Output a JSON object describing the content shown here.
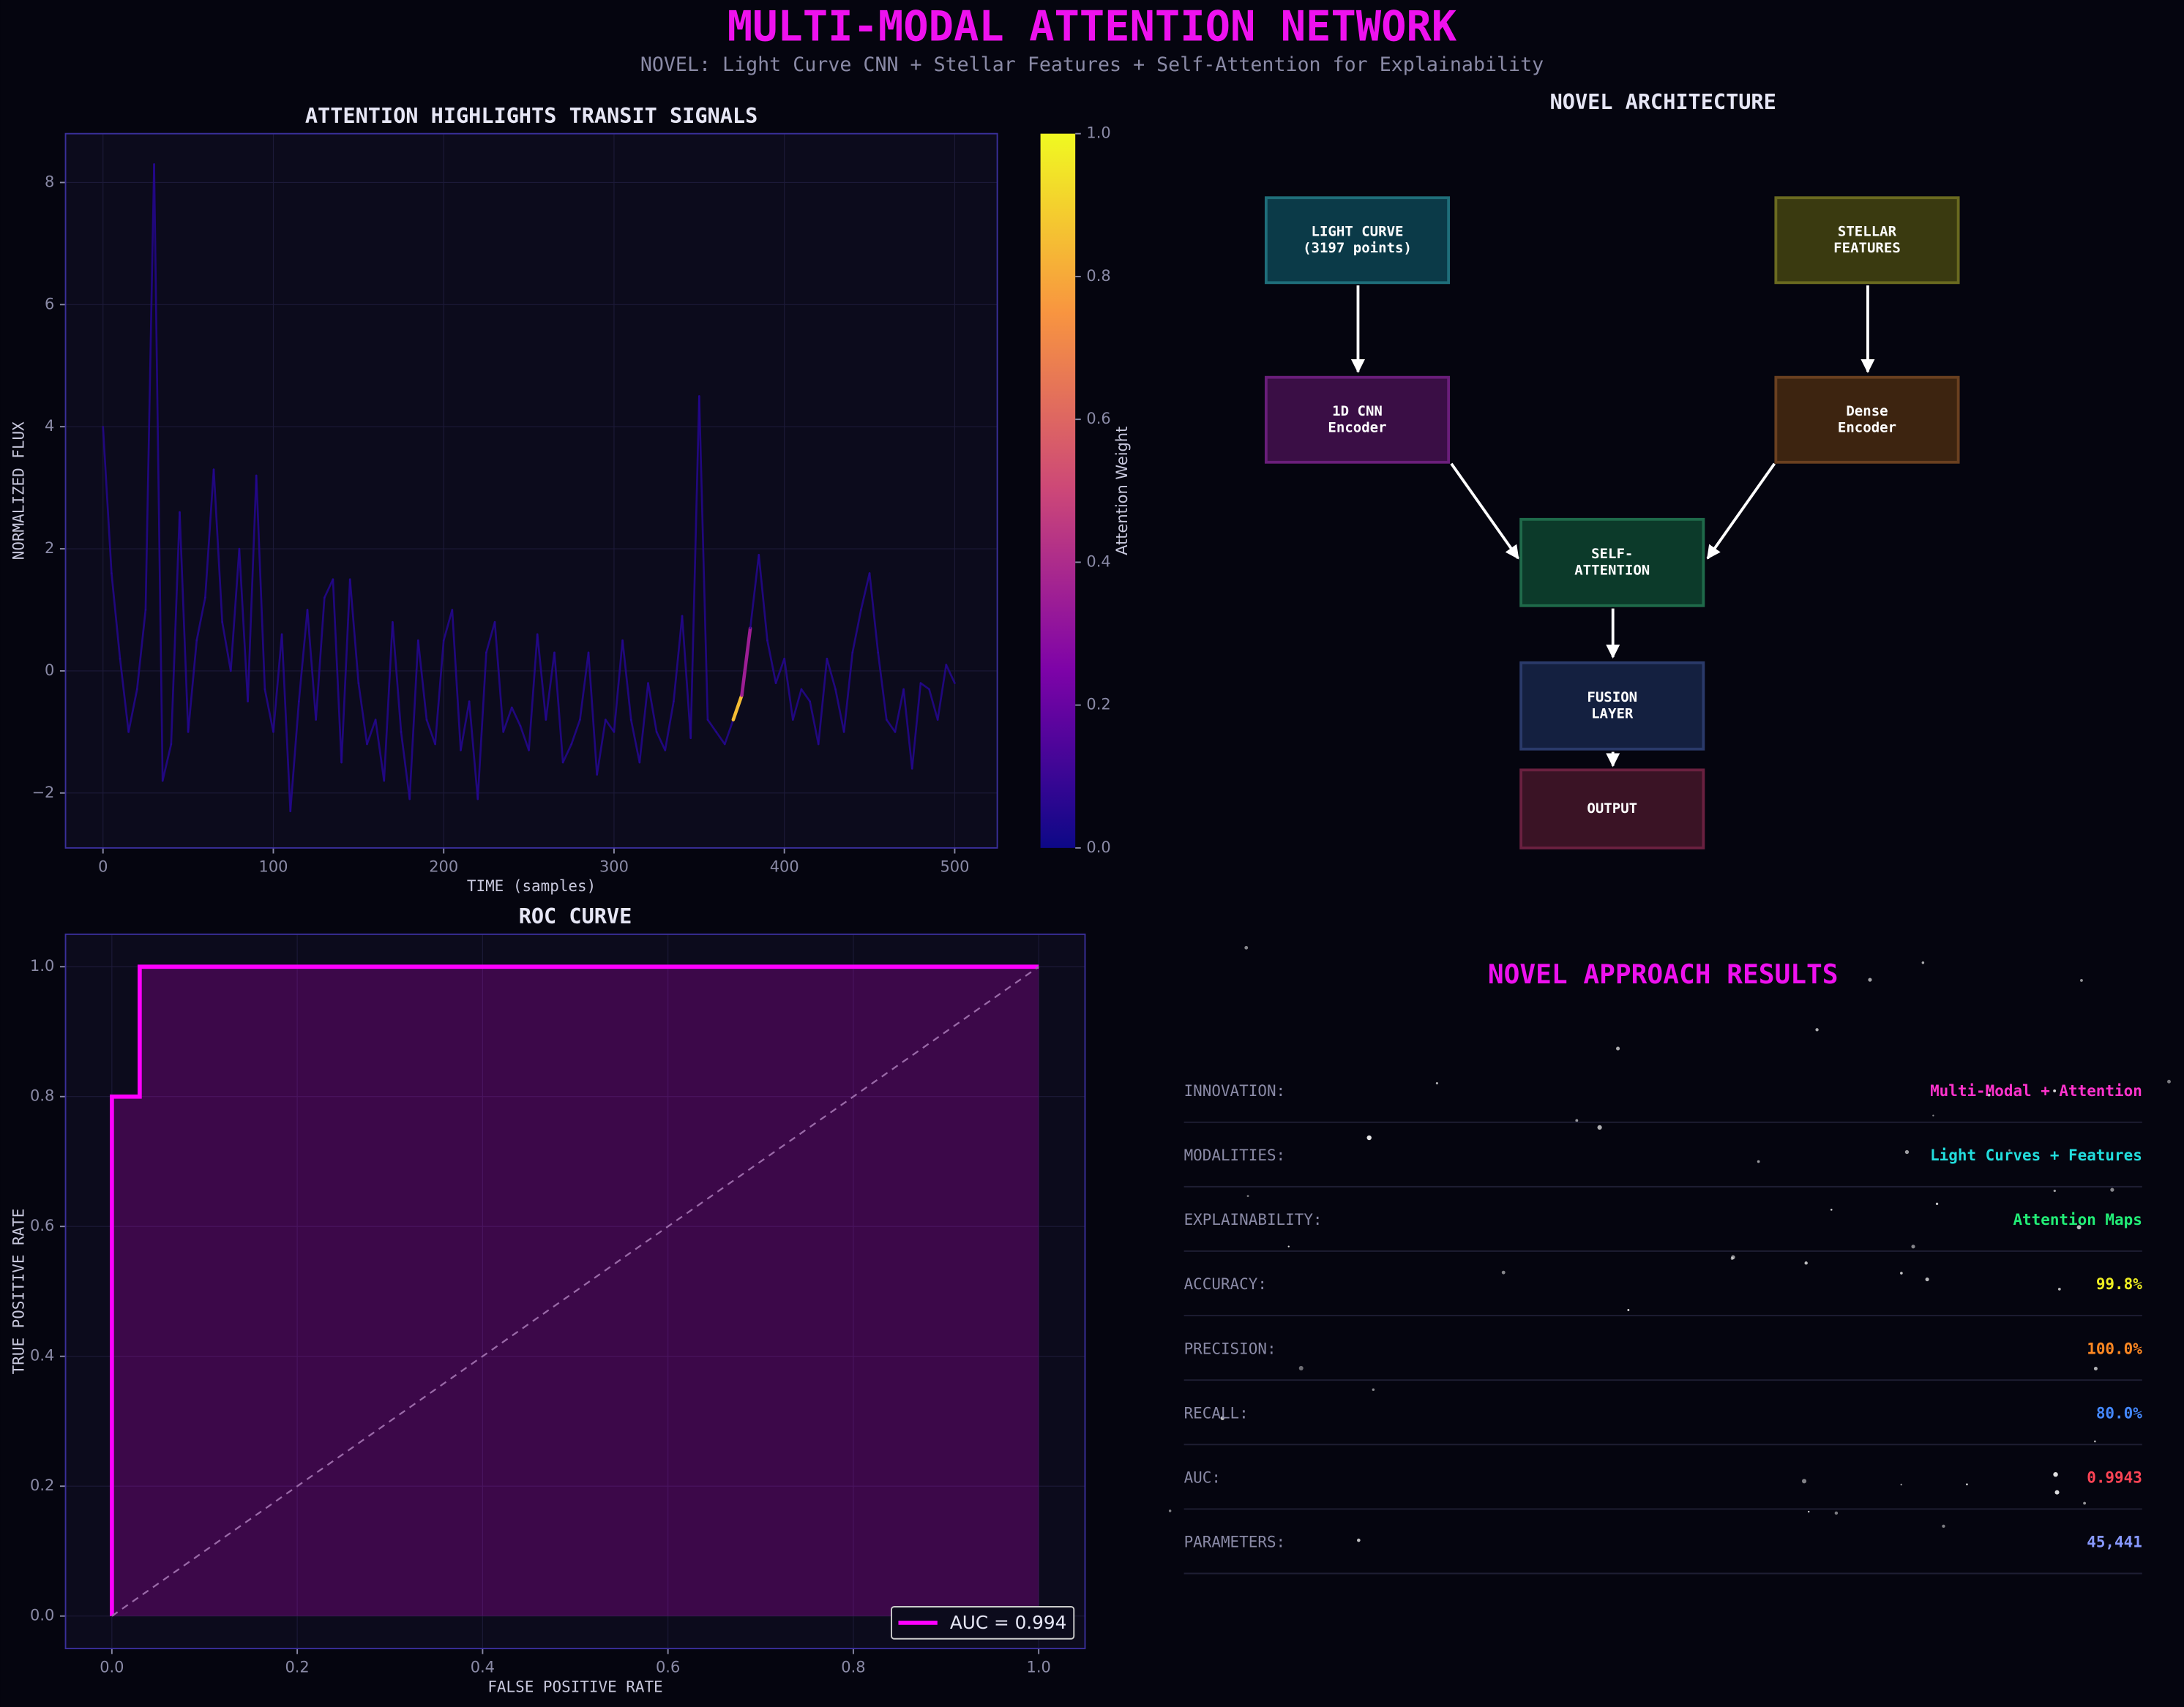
{
  "header": {
    "title": "MULTI-MODAL ATTENTION NETWORK",
    "subtitle": "NOVEL: Light Curve CNN + Stellar Features + Self-Attention for Explainability"
  },
  "chart_data": [
    {
      "type": "line",
      "title": "ATTENTION HIGHLIGHTS TRANSIT SIGNALS",
      "x_label": "TIME (samples)",
      "y_label": "NORMALIZED FLUX",
      "x": [
        0,
        5,
        10,
        15,
        20,
        25,
        30,
        35,
        40,
        45,
        50,
        55,
        60,
        65,
        70,
        75,
        80,
        85,
        90,
        95,
        100,
        105,
        110,
        115,
        120,
        125,
        130,
        135,
        140,
        145,
        150,
        155,
        160,
        165,
        170,
        175,
        180,
        185,
        190,
        195,
        200,
        205,
        210,
        215,
        220,
        225,
        230,
        235,
        240,
        245,
        250,
        255,
        260,
        265,
        270,
        275,
        280,
        285,
        290,
        295,
        300,
        305,
        310,
        315,
        320,
        325,
        330,
        335,
        340,
        345,
        350,
        355,
        360,
        365,
        370,
        375,
        380,
        385,
        390,
        395,
        400,
        405,
        410,
        415,
        420,
        425,
        430,
        435,
        440,
        445,
        450,
        455,
        460,
        465,
        470,
        475,
        480,
        485,
        490,
        495,
        500
      ],
      "values": [
        4.0,
        1.6,
        0.2,
        -1.0,
        -0.3,
        1.0,
        8.3,
        -1.8,
        -1.2,
        2.6,
        -1.0,
        0.5,
        1.2,
        3.3,
        0.8,
        0.0,
        2.0,
        -0.5,
        3.2,
        -0.3,
        -1.0,
        0.6,
        -2.3,
        -0.5,
        1.0,
        -0.8,
        1.2,
        1.5,
        -1.5,
        1.5,
        -0.2,
        -1.2,
        -0.8,
        -1.8,
        0.8,
        -1.0,
        -2.1,
        0.5,
        -0.8,
        -1.2,
        0.5,
        1.0,
        -1.3,
        -0.5,
        -2.1,
        0.3,
        0.8,
        -1.0,
        -0.6,
        -0.9,
        -1.3,
        0.6,
        -0.8,
        0.3,
        -1.5,
        -1.2,
        -0.8,
        0.3,
        -1.7,
        -0.8,
        -1.0,
        0.5,
        -0.8,
        -1.5,
        -0.2,
        -1.0,
        -1.3,
        -0.5,
        0.9,
        -1.1,
        4.5,
        -0.8,
        -1.0,
        -1.2,
        -0.8,
        -0.4,
        0.7,
        1.9,
        0.5,
        -0.2,
        0.2,
        -0.8,
        -0.3,
        -0.5,
        -1.2,
        0.2,
        -0.3,
        -1.0,
        0.3,
        1.0,
        1.6,
        0.3,
        -0.8,
        -1.0,
        -0.3,
        -1.6,
        -0.2,
        -0.3,
        -0.8,
        0.1,
        -0.2
      ],
      "attention": [
        0.05,
        0.05,
        0.05,
        0.05,
        0.05,
        0.05,
        0.05,
        0.05,
        0.05,
        0.05,
        0.05,
        0.05,
        0.05,
        0.05,
        0.05,
        0.05,
        0.05,
        0.05,
        0.05,
        0.05,
        0.05,
        0.05,
        0.05,
        0.05,
        0.05,
        0.05,
        0.05,
        0.05,
        0.05,
        0.05,
        0.05,
        0.05,
        0.05,
        0.05,
        0.05,
        0.05,
        0.05,
        0.05,
        0.05,
        0.05,
        0.05,
        0.05,
        0.05,
        0.05,
        0.05,
        0.05,
        0.05,
        0.05,
        0.05,
        0.05,
        0.05,
        0.05,
        0.05,
        0.05,
        0.05,
        0.05,
        0.05,
        0.05,
        0.05,
        0.05,
        0.05,
        0.05,
        0.05,
        0.05,
        0.05,
        0.05,
        0.05,
        0.05,
        0.05,
        0.05,
        0.05,
        0.05,
        0.05,
        0.05,
        0.85,
        0.35,
        0.05,
        0.05,
        0.05,
        0.05,
        0.05,
        0.05,
        0.05,
        0.05,
        0.05,
        0.05,
        0.05,
        0.05,
        0.05,
        0.05,
        0.05,
        0.05,
        0.05,
        0.05,
        0.05,
        0.05,
        0.05,
        0.05,
        0.05,
        0.05,
        0.05
      ],
      "colormap": "plasma",
      "colorbar_label": "Attention Weight",
      "clim": [
        0,
        1
      ],
      "cticks": [
        {
          "value": 0,
          "label": "0.0"
        },
        {
          "value": 0.2,
          "label": "0.2"
        },
        {
          "value": 0.4,
          "label": "0.4"
        },
        {
          "value": 0.6,
          "label": "0.6"
        },
        {
          "value": 0.8,
          "label": "0.8"
        },
        {
          "value": 1,
          "label": "1.0"
        }
      ],
      "xlim": [
        -22,
        525
      ],
      "ylim": [
        -2.9,
        8.8
      ],
      "xticks": [
        0,
        100,
        200,
        300,
        400,
        500
      ],
      "yticks": [
        {
          "value": -2,
          "label": "−2"
        },
        0,
        2,
        4,
        6,
        8
      ],
      "grid": true
    },
    {
      "type": "line",
      "title": "ROC CURVE",
      "x_label": "FALSE POSITIVE RATE",
      "y_label": "TRUE POSITIVE RATE",
      "series": [
        {
          "name": "AUC = 0.994",
          "color": "#ff00ff",
          "x": [
            0,
            0,
            0.03,
            0.03,
            1
          ],
          "values": [
            0,
            0.8,
            0.8,
            1,
            1
          ],
          "fill": true
        },
        {
          "color": "#9a6aa8",
          "x": [
            0,
            1
          ],
          "values": [
            0,
            1
          ],
          "dashed": true
        }
      ],
      "xlim": [
        -0.05,
        1.05
      ],
      "ylim": [
        -0.05,
        1.05
      ],
      "xticks": [
        {
          "value": 0,
          "label": "0.0"
        },
        {
          "value": 0.2,
          "label": "0.2"
        },
        {
          "value": 0.4,
          "label": "0.4"
        },
        {
          "value": 0.6,
          "label": "0.6"
        },
        {
          "value": 0.8,
          "label": "0.8"
        },
        {
          "value": 1,
          "label": "1.0"
        }
      ],
      "yticks": [
        {
          "value": 0,
          "label": "0.0"
        },
        {
          "value": 0.2,
          "label": "0.2"
        },
        {
          "value": 0.4,
          "label": "0.4"
        },
        {
          "value": 0.6,
          "label": "0.6"
        },
        {
          "value": 0.8,
          "label": "0.8"
        },
        {
          "value": 1,
          "label": "1.0"
        }
      ],
      "legend": "lower right",
      "grid": true
    }
  ],
  "architecture": {
    "title": "NOVEL ARCHITECTURE",
    "nodes": [
      {
        "lines": [
          "LIGHT CURVE",
          "(3197 points)"
        ],
        "fill": "#0b3a48",
        "stroke": "#1f6e7a"
      },
      {
        "lines": [
          "STELLAR",
          "FEATURES"
        ],
        "fill": "#3a3a10",
        "stroke": "#6a6a20"
      },
      {
        "lines": [
          "1D CNN",
          "Encoder"
        ],
        "fill": "#3a0e45",
        "stroke": "#6a1e7a"
      },
      {
        "lines": [
          "Dense",
          "Encoder"
        ],
        "fill": "#3d2410",
        "stroke": "#6a4020"
      },
      {
        "lines": [
          "SELF-",
          "ATTENTION"
        ],
        "fill": "#0c3a2a",
        "stroke": "#1f6a4a"
      },
      {
        "lines": [
          "FUSION",
          "LAYER"
        ],
        "fill": "#142040",
        "stroke": "#2a3a6a"
      },
      {
        "lines": [
          "OUTPUT"
        ],
        "fill": "#3a1325",
        "stroke": "#6a2040"
      }
    ]
  },
  "results": {
    "title": "NOVEL APPROACH RESULTS",
    "rows": [
      {
        "label": "INNOVATION:",
        "value": "Multi-Modal + Attention",
        "color": "#ff33cc"
      },
      {
        "label": "MODALITIES:",
        "value": "Light Curves + Features",
        "color": "#22dddd"
      },
      {
        "label": "EXPLAINABILITY:",
        "value": "Attention Maps",
        "color": "#22ee77"
      },
      {
        "label": "ACCURACY:",
        "value": "99.8%",
        "color": "#eeee22"
      },
      {
        "label": "PRECISION:",
        "value": "100.0%",
        "color": "#ff8822"
      },
      {
        "label": "RECALL:",
        "value": "80.0%",
        "color": "#4488ff"
      },
      {
        "label": "AUC:",
        "value": "0.9943",
        "color": "#ff4455"
      },
      {
        "label": "PARAMETERS:",
        "value": "45,441",
        "color": "#8899ff"
      }
    ]
  }
}
